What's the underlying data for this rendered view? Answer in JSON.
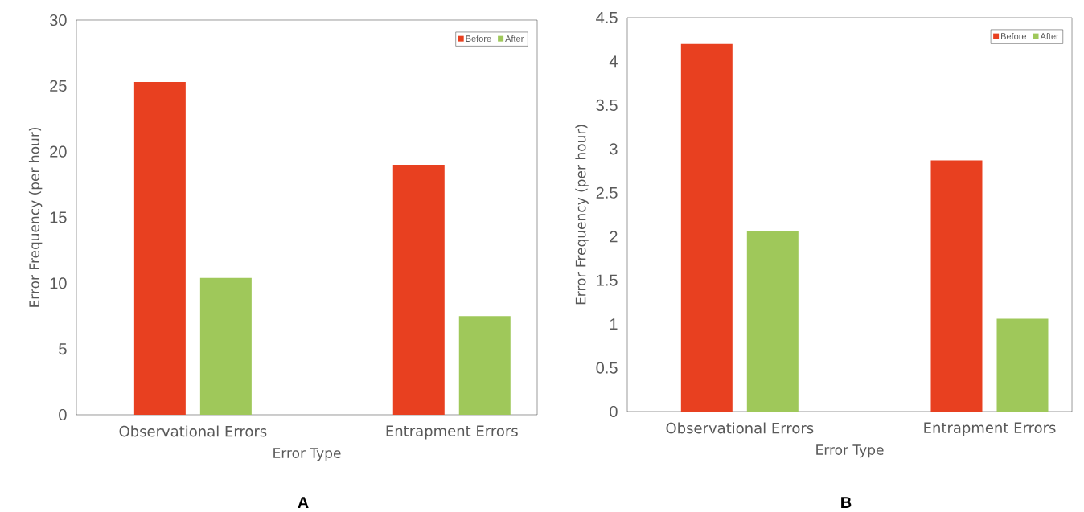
{
  "chart_data": [
    {
      "type": "bar",
      "categories": [
        "Observational Errors",
        "Entrapment Errors"
      ],
      "xlabel": "Error Type",
      "ylabel": "Error Frequency (per hour)",
      "ylim": [
        0,
        30
      ],
      "yticks": [
        0,
        5,
        10,
        15,
        20,
        25,
        30
      ],
      "legend": "top right",
      "annotations": [
        "A"
      ],
      "series": [
        {
          "name": "Before",
          "color": "#e84020",
          "values": [
            25.3,
            19.0
          ]
        },
        {
          "name": "After",
          "color": "#9fc85a",
          "values": [
            10.4,
            7.5
          ]
        }
      ]
    },
    {
      "type": "bar",
      "categories": [
        "Observational Errors",
        "Entrapment Errors"
      ],
      "xlabel": "Error Type",
      "ylabel": "Error Frequency (per hour)",
      "ylim": [
        0,
        4.5
      ],
      "yticks": [
        0,
        0.5,
        1,
        1.5,
        2,
        2.5,
        3,
        3.5,
        4,
        4.5
      ],
      "legend": "top right",
      "annotations": [
        "B"
      ],
      "series": [
        {
          "name": "Before",
          "color": "#e84020",
          "values": [
            4.2,
            2.87
          ]
        },
        {
          "name": "After",
          "color": "#9fc85a",
          "values": [
            2.06,
            1.06
          ]
        }
      ]
    }
  ]
}
